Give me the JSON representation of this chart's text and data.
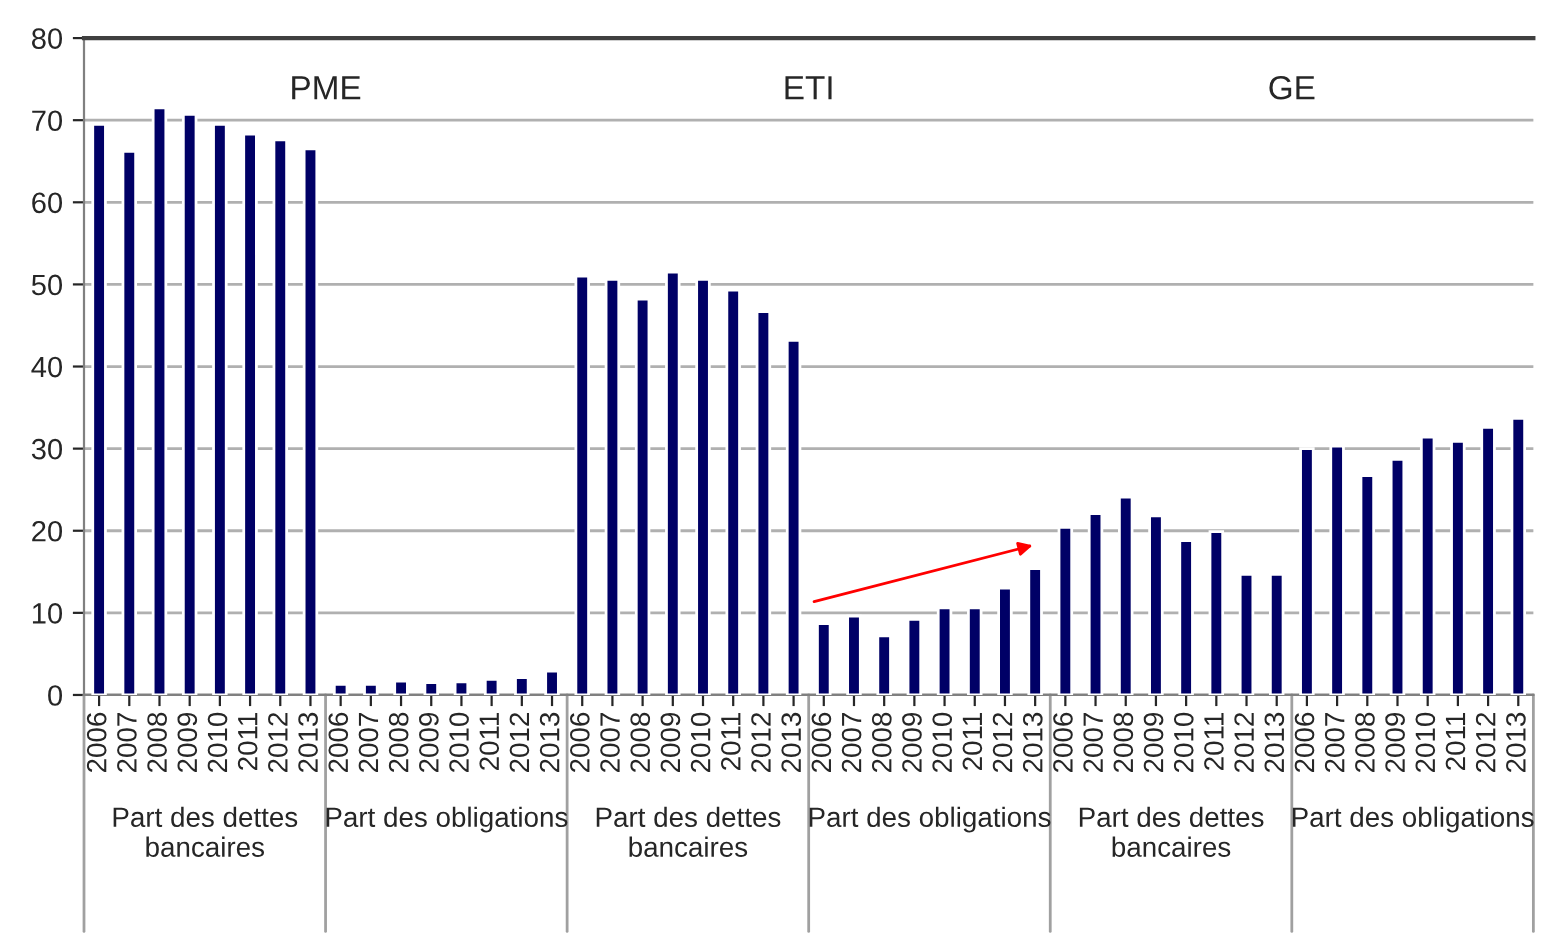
{
  "chart_data": {
    "type": "bar",
    "categories": [
      "2006",
      "2007",
      "2008",
      "2009",
      "2010",
      "2011",
      "2012",
      "2013",
      "2006",
      "2007",
      "2008",
      "2009",
      "2010",
      "2011",
      "2012",
      "2013",
      "2006",
      "2007",
      "2008",
      "2009",
      "2010",
      "2011",
      "2012",
      "2013",
      "2006",
      "2007",
      "2008",
      "2009",
      "2010",
      "2011",
      "2012",
      "2013",
      "2006",
      "2007",
      "2008",
      "2009",
      "2010",
      "2011",
      "2012",
      "2013",
      "2006",
      "2007",
      "2008",
      "2009",
      "2010",
      "2011",
      "2012",
      "2013"
    ],
    "values": [
      69.5,
      66.2,
      71.5,
      70.7,
      69.5,
      68.3,
      67.6,
      66.5,
      1.3,
      1.3,
      1.7,
      1.5,
      1.6,
      1.9,
      2.1,
      2.9,
      51.0,
      50.6,
      48.2,
      51.5,
      50.6,
      49.3,
      46.7,
      43.2,
      8.7,
      9.6,
      7.2,
      9.2,
      10.6,
      10.6,
      13.0,
      15.4,
      20.4,
      22.1,
      24.1,
      21.8,
      18.8,
      19.9,
      14.7,
      14.7,
      30.0,
      30.3,
      26.7,
      28.7,
      31.4,
      30.9,
      32.6,
      33.7
    ],
    "color": "#000066",
    "ylim": [
      0,
      80
    ],
    "yticks": [
      0,
      10,
      20,
      30,
      40,
      50,
      60,
      70,
      80
    ],
    "grid": "y",
    "annotations": [
      "PME",
      "ETI",
      "GE",
      "Part des dettes bancaires",
      "Part des obligations",
      "Part des dettes bancaires",
      "Part des obligations",
      "Part des dettes bancaires",
      "Part des obligations"
    ]
  }
}
